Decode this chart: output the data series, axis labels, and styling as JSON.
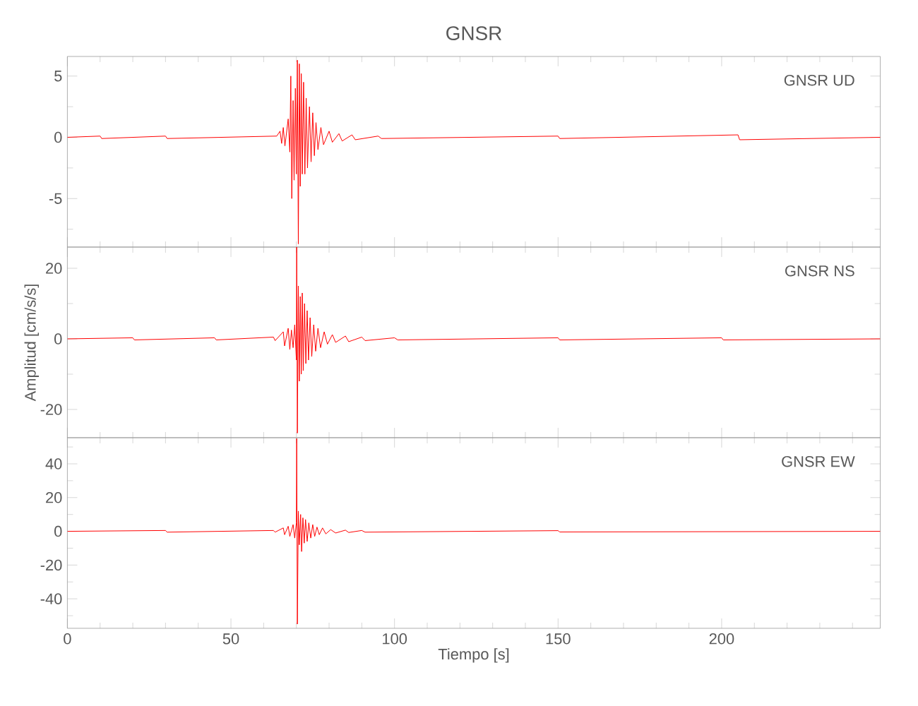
{
  "chart_data": [
    {
      "type": "line",
      "title": "GNSR",
      "annotations": [
        "GNSR   UD"
      ],
      "tick_labels": "y",
      "xlim": [
        0,
        248.5
      ],
      "ylim": [
        -8.96,
        6.6
      ],
      "xticks": [
        0,
        {
          "value": 10,
          "label": null
        },
        {
          "value": 20,
          "label": null
        },
        {
          "value": 30,
          "label": null
        },
        {
          "value": 40,
          "label": null
        },
        50,
        {
          "value": 60,
          "label": null
        },
        {
          "value": 70,
          "label": null
        },
        {
          "value": 80,
          "label": null
        },
        {
          "value": 90,
          "label": null
        },
        100,
        {
          "value": 110,
          "label": null
        },
        {
          "value": 120,
          "label": null
        },
        {
          "value": 130,
          "label": null
        },
        {
          "value": 140,
          "label": null
        },
        150,
        {
          "value": 160,
          "label": null
        },
        {
          "value": 170,
          "label": null
        },
        {
          "value": 180,
          "label": null
        },
        {
          "value": 190,
          "label": null
        },
        200,
        {
          "value": 210,
          "label": null
        },
        {
          "value": 220,
          "label": null
        },
        {
          "value": 230,
          "label": null
        },
        {
          "value": 240,
          "label": null
        }
      ],
      "yticks": [
        {
          "value": -7.5,
          "label": null
        },
        -5,
        {
          "value": -2.5,
          "label": null
        },
        0,
        {
          "value": 2.5,
          "label": null
        },
        5
      ],
      "series": [
        {
          "color": "#ff0000",
          "x": [
            0,
            10,
            10.5,
            30,
            30.5,
            64,
            65,
            65.5,
            66,
            66.5,
            67.5,
            68,
            68.3,
            68.6,
            69,
            69.3,
            69.7,
            70,
            70.3,
            70.6,
            70.9,
            71.2,
            71.5,
            71.8,
            72.2,
            72.6,
            73,
            73.4,
            74,
            74.5,
            75,
            75.5,
            76,
            76.6,
            77.5,
            78.3,
            80,
            81,
            83,
            84,
            87,
            88,
            95,
            96,
            150,
            150.5,
            205,
            205.5,
            248.5
          ],
          "values": [
            0,
            0.1,
            -0.1,
            0.1,
            -0.1,
            0.1,
            0.5,
            -0.5,
            0.8,
            -0.7,
            1.5,
            -1.2,
            5.0,
            -5.0,
            3,
            -3.5,
            4,
            -3,
            6.3,
            -8.7,
            6.0,
            -4,
            5.2,
            -3,
            4.5,
            -3,
            3.2,
            -2.5,
            2.5,
            -2,
            2,
            -1.5,
            1.2,
            -1,
            0.8,
            -0.6,
            0.5,
            -0.4,
            0.3,
            -0.3,
            0.2,
            -0.2,
            0.1,
            -0.1,
            0.1,
            -0.1,
            0.2,
            -0.2,
            0
          ]
        }
      ]
    },
    {
      "type": "line",
      "ylabel": "Amplitud [cm/s/s]",
      "annotations": [
        "GNSR   NS"
      ],
      "tick_labels": "y",
      "xlim": [
        0,
        248.5
      ],
      "ylim": [
        -28,
        26
      ],
      "xticks": [
        0,
        {
          "value": 10,
          "label": null
        },
        {
          "value": 20,
          "label": null
        },
        {
          "value": 30,
          "label": null
        },
        {
          "value": 40,
          "label": null
        },
        50,
        {
          "value": 60,
          "label": null
        },
        {
          "value": 70,
          "label": null
        },
        {
          "value": 80,
          "label": null
        },
        {
          "value": 90,
          "label": null
        },
        100,
        {
          "value": 110,
          "label": null
        },
        {
          "value": 120,
          "label": null
        },
        {
          "value": 130,
          "label": null
        },
        {
          "value": 140,
          "label": null
        },
        150,
        {
          "value": 160,
          "label": null
        },
        {
          "value": 170,
          "label": null
        },
        {
          "value": 180,
          "label": null
        },
        {
          "value": 190,
          "label": null
        },
        200,
        {
          "value": 210,
          "label": null
        },
        {
          "value": 220,
          "label": null
        },
        {
          "value": 230,
          "label": null
        },
        {
          "value": 240,
          "label": null
        }
      ],
      "yticks": [
        -20,
        {
          "value": -10,
          "label": null
        },
        0,
        {
          "value": 10,
          "label": null
        },
        20
      ],
      "series": [
        {
          "color": "#ff0000",
          "x": [
            0,
            20,
            20.5,
            45,
            45.5,
            63,
            63.5,
            66,
            66.4,
            67.5,
            68,
            68.5,
            69,
            69.5,
            70,
            70.1,
            70.3,
            70.6,
            70.9,
            71.2,
            71.5,
            71.8,
            72.1,
            72.5,
            72.9,
            73.3,
            73.7,
            74.2,
            74.7,
            75.3,
            75.9,
            76.6,
            77.4,
            78.5,
            79.5,
            81,
            82,
            85,
            86,
            90,
            91,
            100,
            101,
            150,
            150.5,
            200,
            200.5,
            248.5
          ],
          "values": [
            0,
            0.3,
            -0.3,
            0.3,
            -0.3,
            0.5,
            -0.5,
            2,
            -2,
            3,
            -3,
            2.5,
            -2.5,
            4,
            -6,
            26,
            -26.7,
            15,
            -12,
            12,
            -10,
            13,
            -9,
            10,
            -7,
            8,
            -6,
            6,
            -5,
            4,
            -3.5,
            3,
            -2.5,
            2,
            -1.5,
            1.2,
            -1,
            0.8,
            -0.8,
            0.5,
            -0.5,
            0.3,
            -0.3,
            0.3,
            -0.3,
            0.3,
            -0.3,
            0
          ]
        }
      ]
    },
    {
      "type": "line",
      "xlabel": "Tiempo [s]",
      "annotations": [
        "GNSR   EW"
      ],
      "xlim": [
        0,
        248.5
      ],
      "ylim": [
        -57.5,
        55.5
      ],
      "xticks": [
        0,
        {
          "value": 10,
          "label": null
        },
        {
          "value": 20,
          "label": null
        },
        {
          "value": 30,
          "label": null
        },
        {
          "value": 40,
          "label": null
        },
        50,
        {
          "value": 60,
          "label": null
        },
        {
          "value": 70,
          "label": null
        },
        {
          "value": 80,
          "label": null
        },
        {
          "value": 90,
          "label": null
        },
        100,
        {
          "value": 110,
          "label": null
        },
        {
          "value": 120,
          "label": null
        },
        {
          "value": 130,
          "label": null
        },
        {
          "value": 140,
          "label": null
        },
        150,
        {
          "value": 160,
          "label": null
        },
        {
          "value": 170,
          "label": null
        },
        {
          "value": 180,
          "label": null
        },
        {
          "value": 190,
          "label": null
        },
        200,
        {
          "value": 210,
          "label": null
        },
        {
          "value": 220,
          "label": null
        },
        {
          "value": 230,
          "label": null
        },
        {
          "value": 240,
          "label": null
        }
      ],
      "yticks": [
        {
          "value": -50,
          "label": null
        },
        -40,
        {
          "value": -30,
          "label": null
        },
        -20,
        {
          "value": -10,
          "label": null
        },
        0,
        {
          "value": 10,
          "label": null
        },
        20,
        {
          "value": 30,
          "label": null
        },
        40,
        {
          "value": 50,
          "label": null
        }
      ],
      "series": [
        {
          "color": "#ff0000",
          "x": [
            0,
            30,
            30.5,
            63,
            63.5,
            66,
            66.4,
            67.5,
            68,
            69,
            69.5,
            70,
            70.1,
            70.3,
            70.6,
            70.9,
            71.3,
            71.6,
            72,
            72.4,
            72.8,
            73.3,
            73.8,
            74.4,
            75,
            75.6,
            76.3,
            77,
            78,
            79,
            80.5,
            82,
            85,
            86,
            90,
            91,
            150,
            150.5,
            248.5
          ],
          "values": [
            0,
            0.5,
            -0.5,
            0.5,
            -0.5,
            2,
            -2,
            3,
            -3,
            4,
            -4,
            5,
            55,
            -55,
            12,
            -8,
            10,
            -12,
            8,
            -7,
            7,
            -6,
            5,
            -4,
            4,
            -3,
            2.5,
            -2,
            2,
            -1.5,
            1,
            -1,
            0.7,
            -0.7,
            0.5,
            -0.5,
            0.4,
            -0.4,
            0
          ]
        }
      ]
    }
  ]
}
